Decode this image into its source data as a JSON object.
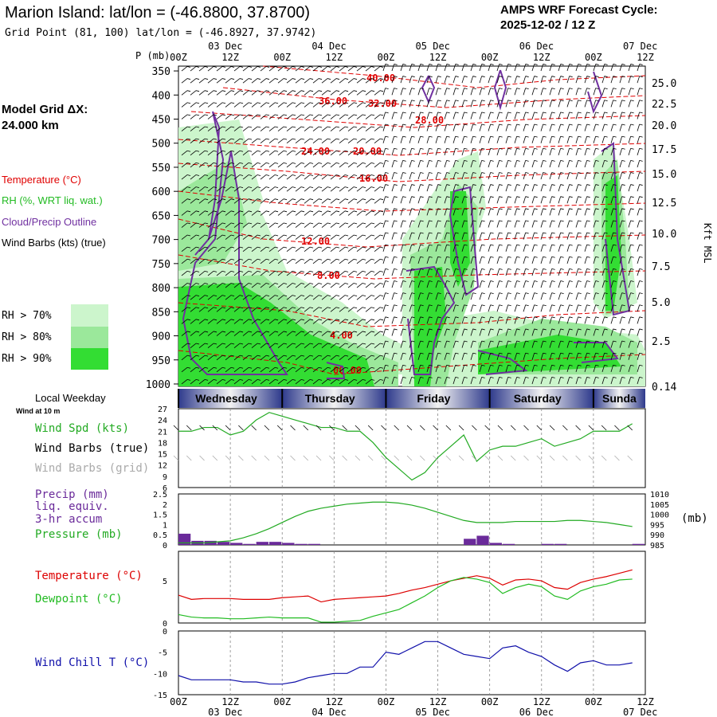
{
  "header": {
    "title": "Marion Island:  lat/lon = (-46.8800, 37.8700)",
    "grid_point": "Grid Point (81, 100) lat/lon = (-46.8927, 37.9742)",
    "cycle_label": "AMPS WRF Forecast Cycle:",
    "cycle_value": "2025-12-02 / 12  Z",
    "model_grid_label": "Model Grid ΔX:",
    "model_grid_value": " 24.000 km"
  },
  "legend": {
    "temperature": {
      "label": "Temperature (°C)",
      "color": "#e00000"
    },
    "rh": {
      "label": "RH (%, WRT liq. wat.)",
      "color": "#22bb22"
    },
    "cloud": {
      "label": "Cloud/Precip Outline",
      "color": "#7030a0"
    },
    "wind": {
      "label": "Wind Barbs (kts) (true)",
      "color": "#000000"
    },
    "rh_bins": [
      {
        "label": "RH > 70%",
        "color": "#ccf5cc"
      },
      {
        "label": "RH > 80%",
        "color": "#9be89b"
      },
      {
        "label": "RH > 90%",
        "color": "#33dd33"
      }
    ]
  },
  "time_axis": {
    "ticks": [
      "00Z",
      "12Z",
      "00Z",
      "12Z",
      "00Z",
      "12Z",
      "00Z",
      "12Z",
      "00Z",
      "12Z"
    ],
    "dates": [
      "03 Dec",
      "04 Dec",
      "05 Dec",
      "06 Dec",
      "07 Dec"
    ]
  },
  "weekday_strip": {
    "label": "Local Weekday",
    "days": [
      "Wednesday",
      "Thursday",
      "Friday",
      "Saturday",
      "Sunda"
    ]
  },
  "panel_labels": {
    "wind_at": "Wind at 10 m",
    "wind_spd": "Wind Spd (kts)",
    "wind_barbs_true": "Wind Barbs (true)",
    "wind_barbs_grid": "Wind Barbs (grid)",
    "precip": "Precip (mm)",
    "liq": "liq. equiv.",
    "accum": "3-hr accum",
    "pressure": "Pressure (mb)",
    "pressure_unit": "(mb)",
    "temperature": "Temperature (°C)",
    "dewpoint": "Dewpoint (°C)",
    "windchill": "Wind Chill T (°C)"
  },
  "chart_data": [
    {
      "type": "heatmap",
      "title": "",
      "ylabel": "P (mb)",
      "y2label": "Kft MSL",
      "y_ticks": [
        "350",
        "400",
        "450",
        "500",
        "550",
        "600",
        "650",
        "700",
        "750",
        "800",
        "850",
        "900",
        "950",
        "1000"
      ],
      "y2_ticks": [
        "25.0",
        "22.5",
        "20.0",
        "17.5",
        "15.0",
        "12.5",
        "10.0",
        "7.5",
        "5.0",
        "2.5",
        "0.14"
      ],
      "temperature_contour_labels": [
        "40.00",
        "36.00",
        "32.00",
        "28.00",
        "24.00",
        "20.00",
        "16.00",
        "12.00",
        "8.00",
        "4.00",
        "00.00"
      ],
      "rh_regions_note": "RH >70/80/90% shaded regions",
      "colors": {
        "temp": "#e00000",
        "cloud": "#7030a0"
      }
    },
    {
      "type": "line",
      "x_hours": [
        0,
        3,
        6,
        9,
        12,
        15,
        18,
        21,
        24,
        27,
        30,
        33,
        36,
        39,
        42,
        45,
        48,
        51,
        54,
        57,
        60,
        63,
        66,
        69,
        72,
        75,
        78,
        81,
        84,
        87,
        90,
        93,
        96,
        99,
        102,
        105
      ],
      "series": [
        {
          "name": "Wind Spd (kts)",
          "color": "#22aa22",
          "values": [
            21,
            21,
            22,
            22,
            20,
            21,
            24,
            26,
            25,
            24,
            23,
            22,
            22,
            21,
            21,
            18,
            14,
            11,
            8,
            10,
            14,
            17,
            20,
            13,
            16,
            17,
            17,
            18,
            19,
            17,
            18,
            19,
            21,
            21,
            21,
            23
          ]
        }
      ],
      "ylim": [
        6,
        27
      ],
      "y_ticks": [
        6,
        9,
        12,
        15,
        18,
        21,
        24,
        27
      ]
    },
    {
      "type": "bar",
      "series": [
        {
          "name": "Precip (mm)",
          "color": "#6a2a9a",
          "values": [
            0.55,
            0.2,
            0.2,
            0.15,
            0.1,
            0.05,
            0.15,
            0.15,
            0.1,
            0.05,
            0.05,
            0,
            0,
            0,
            0,
            0,
            0,
            0,
            0,
            0,
            0,
            0,
            0.3,
            0.45,
            0.1,
            0.05,
            0,
            0,
            0.05,
            0.05,
            0,
            0,
            0,
            0,
            0,
            0.05
          ]
        },
        {
          "name": "Pressure (mb)",
          "color": "#22aa22",
          "values": [
            986,
            986,
            986,
            986.5,
            987,
            988.5,
            990.5,
            993,
            996,
            999,
            1001.5,
            1003,
            1004,
            1005,
            1005.5,
            1006,
            1006,
            1005.5,
            1004.5,
            1003,
            1001,
            999,
            997,
            996,
            996,
            996,
            996.5,
            996.5,
            996.5,
            996.5,
            997,
            997,
            996.5,
            996,
            995,
            994
          ]
        }
      ],
      "ylim": [
        0,
        2.5
      ],
      "y_ticks": [
        0.0,
        0.5,
        1.0,
        1.5,
        2.0,
        2.5
      ],
      "y2lim": [
        985,
        1010
      ],
      "y2_ticks": [
        985,
        990,
        995,
        1000,
        1005,
        1010
      ]
    },
    {
      "type": "line",
      "series": [
        {
          "name": "Temperature (°C)",
          "color": "#dd0000",
          "values": [
            3.3,
            2.8,
            2.9,
            2.9,
            2.9,
            2.8,
            2.8,
            2.8,
            3.0,
            3.1,
            3.2,
            2.5,
            2.8,
            2.9,
            3.0,
            3.1,
            3.2,
            3.5,
            3.9,
            4.2,
            4.6,
            5.0,
            5.3,
            5.6,
            5.3,
            4.5,
            5.1,
            5.2,
            5.0,
            4.2,
            4.0,
            4.8,
            5.2,
            5.5,
            5.9,
            6.3
          ]
        },
        {
          "name": "Dewpoint (°C)",
          "color": "#22bb22",
          "values": [
            1.0,
            0.7,
            0.6,
            0.6,
            0.5,
            0.5,
            0.6,
            0.7,
            0.6,
            0.6,
            0.6,
            0.1,
            0.1,
            0.2,
            0.3,
            0.8,
            1.2,
            1.6,
            2.4,
            3.2,
            4.2,
            5.0,
            5.4,
            5.2,
            4.8,
            3.5,
            4.2,
            4.6,
            4.3,
            3.2,
            2.8,
            3.8,
            4.3,
            4.6,
            5.1,
            5.2
          ]
        }
      ],
      "ylim": [
        0,
        8.5
      ],
      "y_ticks": [
        0,
        5
      ]
    },
    {
      "type": "line",
      "series": [
        {
          "name": "Wind Chill T (°C)",
          "color": "#1010aa",
          "values": [
            -10.5,
            -11.5,
            -11.5,
            -11.5,
            -11.5,
            -12,
            -12,
            -12.5,
            -12.5,
            -12,
            -11,
            -10.5,
            -10,
            -10,
            -8.5,
            -8.5,
            -5,
            -5.5,
            -4,
            -2.5,
            -2.5,
            -4,
            -5.5,
            -6,
            -6.5,
            -4,
            -3.5,
            -5,
            -6,
            -8,
            -9.5,
            -7.5,
            -7,
            -8,
            -8,
            -7.5
          ]
        }
      ],
      "ylim": [
        -15,
        0
      ],
      "y_ticks": [
        0,
        -5,
        -10,
        -15
      ]
    }
  ]
}
